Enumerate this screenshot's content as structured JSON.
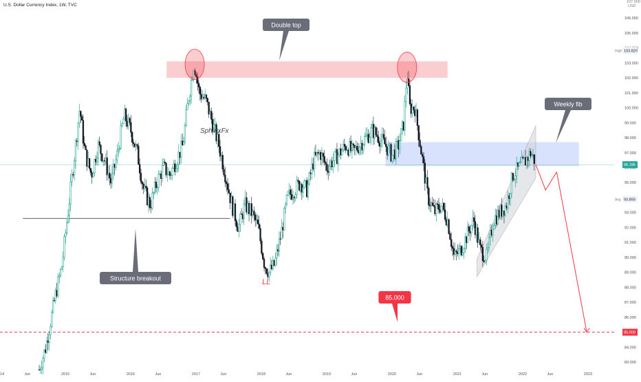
{
  "symbol_title": "U.S. Dollar Currency Index, 1W, TVC",
  "chart_data": {
    "type": "candlestick",
    "currency": "USD",
    "y_axis": {
      "min": 82.5,
      "max": 107.2,
      "ticks": [
        83.0,
        84.0,
        85.0,
        86.0,
        87.0,
        88.0,
        89.0,
        90.0,
        91.0,
        92.0,
        93.0,
        94.0,
        95.0,
        96.0,
        97.0,
        98.0,
        99.0,
        100.0,
        101.0,
        102.0,
        103.0,
        104.0,
        105.0,
        106.0,
        107.0
      ],
      "tick_labels": [
        "83.000",
        "84.000",
        "85.000",
        "86.000",
        "87.000",
        "88.000",
        "89.000",
        "90.000",
        "91.000",
        "92.000",
        "93.000",
        "94.000",
        "95.000",
        "96.000",
        "97.000",
        "98.000",
        "99.000",
        "100.000",
        "101.000",
        "102.000",
        "103.000",
        "104.000",
        "105.000",
        "106.000",
        "107.000"
      ]
    },
    "x_axis": {
      "start": 2014.0,
      "end": 2023.4,
      "ticks": [
        {
          "t": 2014.0,
          "label": "2014"
        },
        {
          "t": 2014.42,
          "label": "Jun"
        },
        {
          "t": 2015.0,
          "label": "2015"
        },
        {
          "t": 2015.42,
          "label": "Jun"
        },
        {
          "t": 2016.0,
          "label": "2016"
        },
        {
          "t": 2016.42,
          "label": "Jun"
        },
        {
          "t": 2017.0,
          "label": "2017"
        },
        {
          "t": 2017.42,
          "label": "Jun"
        },
        {
          "t": 2018.0,
          "label": "2018"
        },
        {
          "t": 2018.42,
          "label": "Jun"
        },
        {
          "t": 2019.0,
          "label": "2019"
        },
        {
          "t": 2019.42,
          "label": "Jun"
        },
        {
          "t": 2020.0,
          "label": "2020"
        },
        {
          "t": 2020.42,
          "label": "Jun"
        },
        {
          "t": 2021.0,
          "label": "2021"
        },
        {
          "t": 2021.42,
          "label": "Jun"
        },
        {
          "t": 2022.0,
          "label": "2022"
        },
        {
          "t": 2022.42,
          "label": "Jun"
        },
        {
          "t": 2023.0,
          "label": "2023"
        },
        {
          "t": 2023.42,
          "label": "Jun"
        }
      ]
    },
    "price_path": [
      [
        2014.6,
        82.5
      ],
      [
        2014.7,
        84.0
      ],
      [
        2014.85,
        87.5
      ],
      [
        2014.95,
        89.5
      ],
      [
        2015.0,
        91.5
      ],
      [
        2015.08,
        94.5
      ],
      [
        2015.17,
        98.0
      ],
      [
        2015.22,
        100.0
      ],
      [
        2015.3,
        97.0
      ],
      [
        2015.4,
        95.5
      ],
      [
        2015.5,
        97.5
      ],
      [
        2015.6,
        96.5
      ],
      [
        2015.7,
        95.0
      ],
      [
        2015.8,
        97.0
      ],
      [
        2015.9,
        99.5
      ],
      [
        2016.0,
        98.5
      ],
      [
        2016.1,
        97.0
      ],
      [
        2016.2,
        94.5
      ],
      [
        2016.3,
        93.5
      ],
      [
        2016.4,
        95.0
      ],
      [
        2016.5,
        96.0
      ],
      [
        2016.6,
        95.5
      ],
      [
        2016.7,
        96.5
      ],
      [
        2016.8,
        97.5
      ],
      [
        2016.88,
        100.5
      ],
      [
        2016.97,
        103.0
      ],
      [
        2017.05,
        101.0
      ],
      [
        2017.15,
        100.5
      ],
      [
        2017.25,
        99.0
      ],
      [
        2017.35,
        97.5
      ],
      [
        2017.45,
        95.5
      ],
      [
        2017.55,
        93.5
      ],
      [
        2017.65,
        92.0
      ],
      [
        2017.75,
        93.5
      ],
      [
        2017.85,
        93.0
      ],
      [
        2017.95,
        92.0
      ],
      [
        2018.05,
        89.5
      ],
      [
        2018.12,
        89.0
      ],
      [
        2018.2,
        89.5
      ],
      [
        2018.3,
        91.5
      ],
      [
        2018.4,
        94.0
      ],
      [
        2018.5,
        94.5
      ],
      [
        2018.6,
        95.0
      ],
      [
        2018.7,
        94.5
      ],
      [
        2018.8,
        96.5
      ],
      [
        2018.9,
        97.0
      ],
      [
        2019.0,
        96.0
      ],
      [
        2019.1,
        96.5
      ],
      [
        2019.2,
        97.0
      ],
      [
        2019.3,
        97.5
      ],
      [
        2019.4,
        97.0
      ],
      [
        2019.5,
        97.5
      ],
      [
        2019.6,
        98.0
      ],
      [
        2019.7,
        98.5
      ],
      [
        2019.8,
        98.0
      ],
      [
        2019.9,
        97.5
      ],
      [
        2020.0,
        96.8
      ],
      [
        2020.1,
        97.5
      ],
      [
        2020.18,
        99.0
      ],
      [
        2020.23,
        102.5
      ],
      [
        2020.27,
        100.0
      ],
      [
        2020.35,
        100.0
      ],
      [
        2020.45,
        97.0
      ],
      [
        2020.55,
        94.0
      ],
      [
        2020.65,
        93.0
      ],
      [
        2020.75,
        93.5
      ],
      [
        2020.85,
        92.5
      ],
      [
        2020.95,
        90.0
      ],
      [
        2021.05,
        90.5
      ],
      [
        2021.15,
        91.5
      ],
      [
        2021.25,
        92.5
      ],
      [
        2021.35,
        90.5
      ],
      [
        2021.45,
        90.0
      ],
      [
        2021.55,
        92.5
      ],
      [
        2021.65,
        93.0
      ],
      [
        2021.75,
        93.5
      ],
      [
        2021.85,
        95.5
      ],
      [
        2021.95,
        96.0
      ],
      [
        2022.05,
        96.5
      ],
      [
        2022.12,
        97.0
      ],
      [
        2022.18,
        96.5
      ]
    ],
    "projection": [
      [
        2022.2,
        96.2
      ],
      [
        2022.35,
        94.5
      ],
      [
        2022.52,
        95.7
      ],
      [
        2022.98,
        85.0
      ]
    ],
    "horizontal_levels": {
      "current": {
        "value": 96.196,
        "label": "96.196"
      },
      "avg": {
        "value": 93.893,
        "label": "93.893",
        "tag": "Avg"
      },
      "high": {
        "value": 103.82,
        "label": "103.820",
        "tag": "High"
      },
      "target": {
        "value": 85.0,
        "label": "85.000"
      },
      "structure": {
        "value": 92.6,
        "from": 2014.35,
        "to": 2017.52
      }
    },
    "zones": [
      {
        "name": "resistance",
        "from": 2016.55,
        "to": 2020.85,
        "low": 102.0,
        "high": 103.1,
        "color": "#f7b2b8"
      },
      {
        "name": "fib",
        "from": 2019.9,
        "to": 2022.86,
        "low": 96.1,
        "high": 97.7,
        "color": "#c4d3fa"
      }
    ],
    "channel": {
      "lower": [
        [
          2021.3,
          88.7
        ],
        [
          2022.2,
          95.3
        ]
      ],
      "upper": [
        [
          2021.3,
          89.9
        ],
        [
          2022.2,
          98.8
        ]
      ]
    },
    "circles": [
      {
        "t": 2016.98,
        "v": 102.9
      },
      {
        "t": 2020.23,
        "v": 102.7
      }
    ],
    "annotations": {
      "double_top": "Double top",
      "weekly_fib": "Weekly fib",
      "structure_breakout": "Structure breakout",
      "target_label": "85.000",
      "ll_label": "LL",
      "watermark": "SphinxFx"
    },
    "colors": {
      "up": "#089981",
      "down": "#131722",
      "projection": "#f23645",
      "target_line": "#f23645",
      "current_line": "#26a69a",
      "callout": "#6a6d78",
      "zone_red": "#f7b2b8",
      "zone_blue": "#c4d3fa"
    }
  }
}
